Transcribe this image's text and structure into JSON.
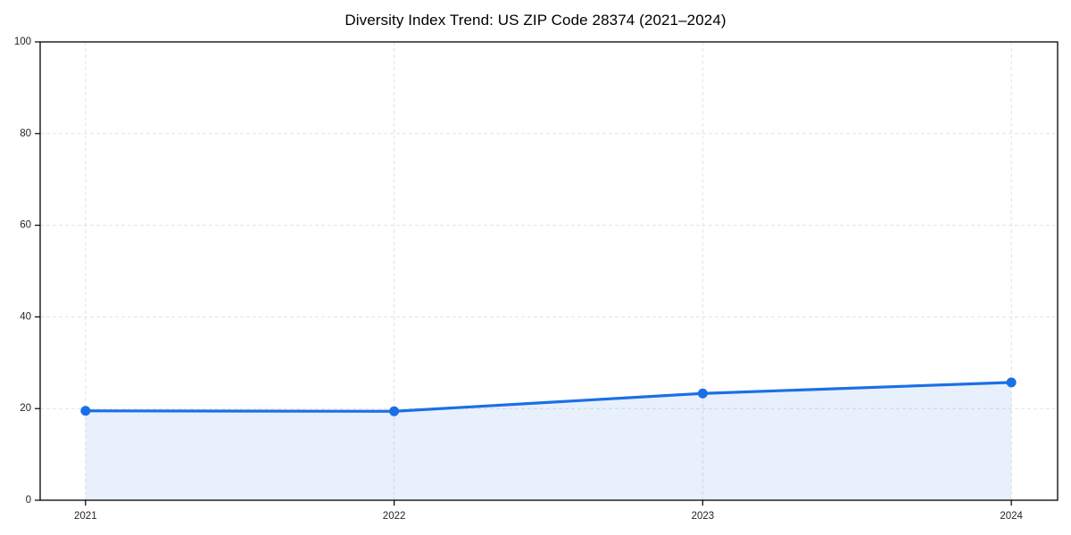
{
  "page": {
    "background": "#ffffff"
  },
  "chart_data": {
    "type": "area",
    "title": "Diversity Index Trend: US ZIP Code 28374 (2021–2024)",
    "xlabel": "",
    "ylabel": "",
    "x": [
      2021,
      2022,
      2023,
      2024
    ],
    "series": [
      {
        "name": "Diversity Index",
        "values": [
          19.5,
          19.4,
          23.3,
          25.7
        ]
      }
    ],
    "xlim": [
      2020.853,
      2024.15
    ],
    "ylim": [
      0,
      100
    ],
    "xticks": [
      2021,
      2022,
      2023,
      2024
    ],
    "xtick_labels": [
      "2021",
      "2022",
      "2023",
      "2024"
    ],
    "yticks": [
      0,
      20,
      40,
      60,
      80,
      100
    ],
    "ytick_labels": [
      "0",
      "20",
      "40",
      "60",
      "80",
      "100"
    ],
    "grid": {
      "visible": true,
      "style": "dashed",
      "color": "#e2e2e2"
    },
    "legend": {
      "visible": false,
      "position": "none"
    },
    "colors": {
      "line": "#1b6fe6",
      "marker": "#1b6fe6",
      "fill": "rgba(27,111,230,0.10)",
      "spine": "#000000",
      "tick": "#000000",
      "tick_label": "#262626",
      "title": "#000000"
    }
  }
}
